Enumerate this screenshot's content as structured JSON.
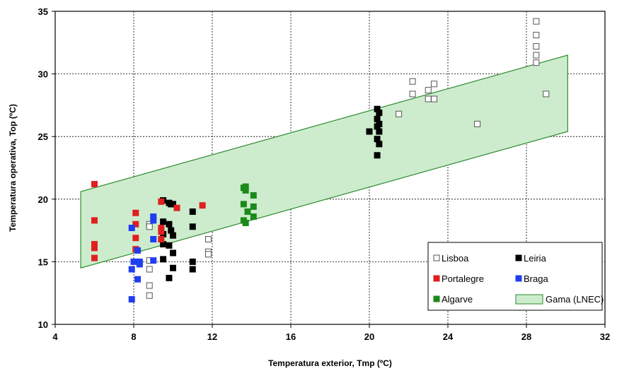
{
  "chart_data": {
    "type": "scatter",
    "xlabel": "Temperatura exterior, Tmp (ºC)",
    "ylabel": "Temperatura operativa, Top (ºC)",
    "xlim": [
      4,
      32
    ],
    "ylim": [
      10,
      35
    ],
    "xticks": [
      4,
      8,
      12,
      16,
      20,
      24,
      28,
      32
    ],
    "yticks": [
      10,
      15,
      20,
      25,
      30,
      35
    ],
    "grid": "dashed",
    "legend_position": "bottom-right",
    "band": {
      "name": "Gama (LNEC)",
      "color": "#cdeccd",
      "edge": "#2e8b2e",
      "x": [
        5.3,
        30.1
      ],
      "lower": [
        14.5,
        25.4
      ],
      "upper": [
        20.6,
        31.5
      ]
    },
    "series": [
      {
        "name": "Lisboa",
        "color": "#ffffff",
        "edge": "#555555",
        "points": [
          [
            8.8,
            18.0
          ],
          [
            8.8,
            17.8
          ],
          [
            8.8,
            15.1
          ],
          [
            8.8,
            14.4
          ],
          [
            8.8,
            13.1
          ],
          [
            8.8,
            12.3
          ],
          [
            11.8,
            16.8
          ],
          [
            11.8,
            15.8
          ],
          [
            11.8,
            15.6
          ],
          [
            21.5,
            26.8
          ],
          [
            22.2,
            29.4
          ],
          [
            22.2,
            28.4
          ],
          [
            23.0,
            28.7
          ],
          [
            23.3,
            29.2
          ],
          [
            23.0,
            28.0
          ],
          [
            23.3,
            28.0
          ],
          [
            25.5,
            26.0
          ],
          [
            28.5,
            34.2
          ],
          [
            28.5,
            33.1
          ],
          [
            28.5,
            32.2
          ],
          [
            28.5,
            31.5
          ],
          [
            28.5,
            30.9
          ],
          [
            29.0,
            28.4
          ]
        ]
      },
      {
        "name": "Leiria",
        "color": "#000000",
        "edge": "#000000",
        "points": [
          [
            9.5,
            19.9
          ],
          [
            9.5,
            18.2
          ],
          [
            9.5,
            17.2
          ],
          [
            9.5,
            16.4
          ],
          [
            9.5,
            15.2
          ],
          [
            9.8,
            19.7
          ],
          [
            9.9,
            19.6
          ],
          [
            9.8,
            18.0
          ],
          [
            9.9,
            17.5
          ],
          [
            9.8,
            16.3
          ],
          [
            9.8,
            13.7
          ],
          [
            10.0,
            19.6
          ],
          [
            10.0,
            17.1
          ],
          [
            10.0,
            15.7
          ],
          [
            10.0,
            14.5
          ],
          [
            11.0,
            19.0
          ],
          [
            11.0,
            17.8
          ],
          [
            11.0,
            15.0
          ],
          [
            11.0,
            14.4
          ],
          [
            20.4,
            27.2
          ],
          [
            20.5,
            26.9
          ],
          [
            20.4,
            26.4
          ],
          [
            20.5,
            26.0
          ],
          [
            20.4,
            25.8
          ],
          [
            20.5,
            25.4
          ],
          [
            20.4,
            24.8
          ],
          [
            20.5,
            24.4
          ],
          [
            20.4,
            23.5
          ],
          [
            20.0,
            25.4
          ]
        ]
      },
      {
        "name": "Portalegre",
        "color": "#e02020",
        "edge": "#e02020",
        "points": [
          [
            6.0,
            21.2
          ],
          [
            6.0,
            18.3
          ],
          [
            6.0,
            16.4
          ],
          [
            6.0,
            16.1
          ],
          [
            6.0,
            15.3
          ],
          [
            8.1,
            18.9
          ],
          [
            8.1,
            18.0
          ],
          [
            8.1,
            16.9
          ],
          [
            8.1,
            16.0
          ],
          [
            9.4,
            19.8
          ],
          [
            9.4,
            17.7
          ],
          [
            9.4,
            17.4
          ],
          [
            9.4,
            16.8
          ],
          [
            10.2,
            19.3
          ],
          [
            11.5,
            19.5
          ]
        ]
      },
      {
        "name": "Braga",
        "color": "#1f3ef0",
        "edge": "#1f3ef0",
        "points": [
          [
            7.9,
            17.7
          ],
          [
            8.0,
            15.0
          ],
          [
            7.9,
            14.4
          ],
          [
            7.9,
            12.0
          ],
          [
            8.2,
            15.9
          ],
          [
            8.3,
            15.0
          ],
          [
            8.3,
            14.8
          ],
          [
            8.2,
            13.6
          ],
          [
            9.0,
            18.6
          ],
          [
            9.0,
            18.3
          ],
          [
            9.0,
            16.8
          ],
          [
            9.0,
            15.1
          ]
        ]
      },
      {
        "name": "Algarve",
        "color": "#1a8a1a",
        "edge": "#1a8a1a",
        "points": [
          [
            13.6,
            20.9
          ],
          [
            13.7,
            21.0
          ],
          [
            13.7,
            20.7
          ],
          [
            13.6,
            19.6
          ],
          [
            13.8,
            19.0
          ],
          [
            13.6,
            18.3
          ],
          [
            13.7,
            18.1
          ],
          [
            14.1,
            20.3
          ],
          [
            14.1,
            19.4
          ],
          [
            14.1,
            18.6
          ]
        ]
      }
    ],
    "legend": [
      {
        "label": "Lisboa",
        "color": "#ffffff",
        "edge": "#555555"
      },
      {
        "label": "Leiria",
        "color": "#000000",
        "edge": "#000000"
      },
      {
        "label": "Portalegre",
        "color": "#e02020",
        "edge": "#e02020"
      },
      {
        "label": "Braga",
        "color": "#1f3ef0",
        "edge": "#1f3ef0"
      },
      {
        "label": "Algarve",
        "color": "#1a8a1a",
        "edge": "#1a8a1a"
      },
      {
        "label": "Gama (LNEC)",
        "color": "#cdeccd",
        "edge": "#2e8b2e"
      }
    ]
  }
}
